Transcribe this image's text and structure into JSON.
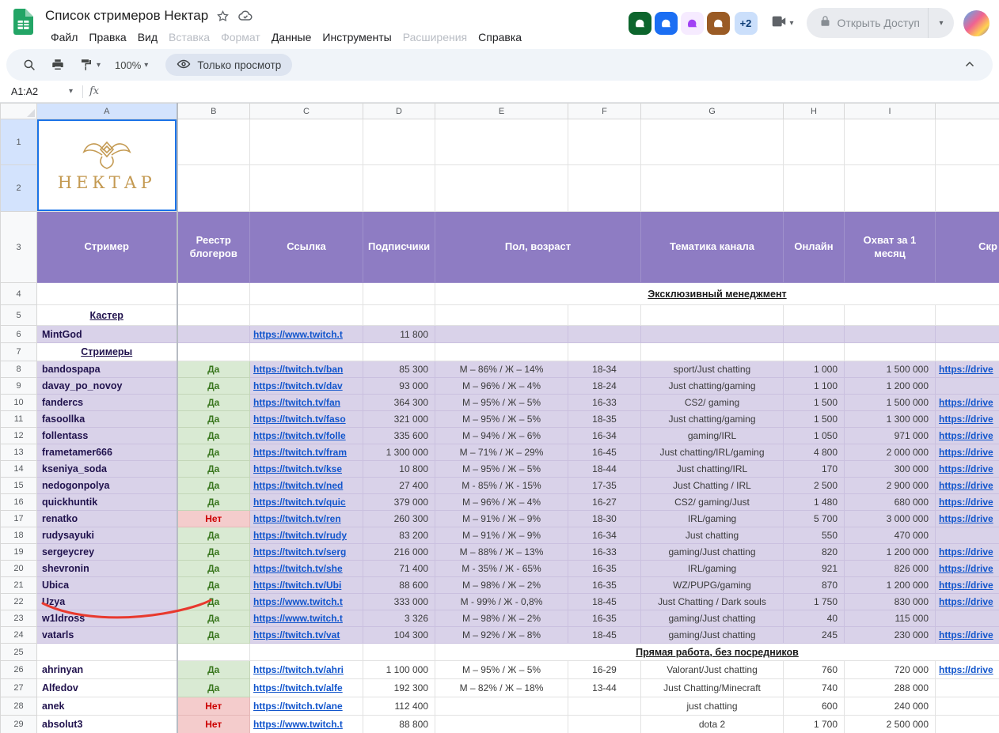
{
  "titlebar": {
    "doc_title": "Список стримеров Нектар",
    "menus": [
      {
        "label": "Файл",
        "disabled": false
      },
      {
        "label": "Правка",
        "disabled": false
      },
      {
        "label": "Вид",
        "disabled": false
      },
      {
        "label": "Вставка",
        "disabled": true
      },
      {
        "label": "Формат",
        "disabled": true
      },
      {
        "label": "Данные",
        "disabled": false
      },
      {
        "label": "Инструменты",
        "disabled": false
      },
      {
        "label": "Расширения",
        "disabled": true
      },
      {
        "label": "Справка",
        "disabled": false
      }
    ],
    "collaborators": [
      {
        "name": "collaborator-avatar-1",
        "bg": "#0d652d",
        "fg": "#ffffff"
      },
      {
        "name": "collaborator-avatar-2",
        "bg": "#1b6ef3",
        "fg": "#ffffff"
      },
      {
        "name": "collaborator-avatar-3",
        "bg": "#f6ebff",
        "fg": "#a142f4"
      },
      {
        "name": "collaborator-avatar-4",
        "bg": "#9a5b25",
        "fg": "#ffffff"
      }
    ],
    "overflow_badge": "+2",
    "share_label": "Открыть Доступ"
  },
  "toolbar": {
    "zoom_value": "100%",
    "view_mode_label": "Только просмотр"
  },
  "formula_bar": {
    "name_box": "A1:A2",
    "fx_label": "fx"
  },
  "colors": {
    "purple_header": "#8e7cc3",
    "purple_row": "#d9d2e9",
    "yes_bg": "#d9ead3",
    "yes_text": "#38761d",
    "no_bg": "#f4cccc",
    "no_text": "#cc0000",
    "link_blue": "#1155cc",
    "name_text": "#20124d",
    "logo_gold": "#c49a52",
    "annotation_red": "#e8392e",
    "selection_blue": "#1a73e8"
  },
  "grid": {
    "col_letters": [
      "A",
      "B",
      "C",
      "D",
      "E",
      "F",
      "G",
      "H",
      "I",
      ""
    ],
    "logo": {
      "text": "НЕКТАР",
      "row_numbers": [
        "1",
        "2"
      ]
    },
    "header_row_number": "3",
    "header_row": {
      "streamer": "Стример",
      "registry": "Реестр блогеров",
      "link": "Ссылка",
      "subscribers": "Подписчики",
      "gender_age": "Пол, возраст",
      "theme": "Тематика канала",
      "online": "Онлайн",
      "reach": "Охват за 1 месяц",
      "screenshot": "Скр"
    },
    "rows": [
      {
        "n": 4,
        "type": "section",
        "label": "Эксклюзивный менеджмент"
      },
      {
        "n": 5,
        "type": "label",
        "label": "Кастер"
      },
      {
        "n": 6,
        "type": "data",
        "shade": "purple",
        "name": "MintGod",
        "reg": "",
        "link": "https://www.twitch.t",
        "subs": "11 800",
        "gender": "",
        "age": "",
        "theme": "",
        "online": "",
        "reach": "",
        "shot": ""
      },
      {
        "n": 7,
        "type": "label",
        "label": "Стримеры"
      },
      {
        "n": 8,
        "type": "data",
        "shade": "purple",
        "name": "bandospapa",
        "reg": "Да",
        "link": "https://twitch.tv/ban",
        "subs": "85 300",
        "gender": "М – 86% / Ж – 14%",
        "age": "18-34",
        "theme": "sport/Just chatting",
        "online": "1 000",
        "reach": "1 500 000",
        "shot": "https://drive"
      },
      {
        "n": 9,
        "type": "data",
        "shade": "purple",
        "name": "davay_po_novoy",
        "reg": "Да",
        "link": "https://twitch.tv/dav",
        "subs": "93 000",
        "gender": "М – 96% / Ж – 4%",
        "age": "18-24",
        "theme": "Just chatting/gaming",
        "online": "1 100",
        "reach": "1 200 000",
        "shot": ""
      },
      {
        "n": 10,
        "type": "data",
        "shade": "purple",
        "name": "fandercs",
        "reg": "Да",
        "link": "https://twitch.tv/fan",
        "subs": "364 300",
        "gender": "М – 95% / Ж – 5%",
        "age": "16-33",
        "theme": "CS2/ gaming",
        "online": "1 500",
        "reach": "1 500 000",
        "shot": "https://drive"
      },
      {
        "n": 11,
        "type": "data",
        "shade": "purple",
        "name": "fasoollka",
        "reg": "Да",
        "link": "https://twitch.tv/faso",
        "subs": "321 000",
        "gender": "М – 95% / Ж – 5%",
        "age": "18-35",
        "theme": "Just chatting/gaming",
        "online": "1 500",
        "reach": "1 300 000",
        "shot": "https://drive"
      },
      {
        "n": 12,
        "type": "data",
        "shade": "purple",
        "name": "follentass",
        "reg": "Да",
        "link": "https://twitch.tv/folle",
        "subs": "335 600",
        "gender": "М – 94% / Ж – 6%",
        "age": "16-34",
        "theme": "gaming/IRL",
        "online": "1 050",
        "reach": "971 000",
        "shot": "https://drive"
      },
      {
        "n": 13,
        "type": "data",
        "shade": "purple",
        "name": "frametamer666",
        "reg": "Да",
        "link": "https://twitch.tv/fram",
        "subs": "1 300 000",
        "gender": "М – 71% / Ж – 29%",
        "age": "16-45",
        "theme": "Just chatting/IRL/gaming",
        "online": "4 800",
        "reach": "2 000 000",
        "shot": "https://drive"
      },
      {
        "n": 14,
        "type": "data",
        "shade": "purple",
        "name": "kseniya_soda",
        "reg": "Да",
        "link": "https://twitch.tv/kse",
        "subs": "10 800",
        "gender": "М – 95% / Ж – 5%",
        "age": "18-44",
        "theme": "Just chatting/IRL",
        "online": "170",
        "reach": "300 000",
        "shot": "https://drive"
      },
      {
        "n": 15,
        "type": "data",
        "shade": "purple",
        "name": "nedogonpolya",
        "reg": "Да",
        "link": "https://twitch.tv/ned",
        "subs": "27 400",
        "gender": "М - 85% / Ж - 15%",
        "age": "17-35",
        "theme": "Just Chatting / IRL",
        "online": "2 500",
        "reach": "2 900 000",
        "shot": "https://drive"
      },
      {
        "n": 16,
        "type": "data",
        "shade": "purple",
        "name": "quickhuntik",
        "reg": "Да",
        "link": "https://twitch.tv/quic",
        "subs": "379 000",
        "gender": "М – 96% / Ж – 4%",
        "age": "16-27",
        "theme": "CS2/ gaming/Just",
        "online": "1 480",
        "reach": "680 000",
        "shot": "https://drive"
      },
      {
        "n": 17,
        "type": "data",
        "shade": "purple",
        "name": "renatko",
        "reg": "Нет",
        "link": "https://twitch.tv/ren",
        "subs": "260 300",
        "gender": "М – 91% / Ж – 9%",
        "age": "18-30",
        "theme": "IRL/gaming",
        "online": "5 700",
        "reach": "3 000 000",
        "shot": "https://drive"
      },
      {
        "n": 18,
        "type": "data",
        "shade": "purple",
        "name": "rudysayuki",
        "reg": "Да",
        "link": "https://twitch.tv/rudy",
        "subs": "83 200",
        "gender": "М – 91% / Ж – 9%",
        "age": "16-34",
        "theme": "Just chatting",
        "online": "550",
        "reach": "470 000",
        "shot": ""
      },
      {
        "n": 19,
        "type": "data",
        "shade": "purple",
        "name": "sergeycrey",
        "reg": "Да",
        "link": "https://twitch.tv/serg",
        "subs": "216 000",
        "gender": "М – 88% / Ж – 13%",
        "age": "16-33",
        "theme": "gaming/Just chatting",
        "online": "820",
        "reach": "1 200 000",
        "shot": "https://drive"
      },
      {
        "n": 20,
        "type": "data",
        "shade": "purple",
        "name": "shevronin",
        "reg": "Да",
        "link": "https://twitch.tv/she",
        "subs": "71 400",
        "gender": "М - 35% / Ж - 65%",
        "age": "16-35",
        "theme": "IRL/gaming",
        "online": "921",
        "reach": "826 000",
        "shot": "https://drive"
      },
      {
        "n": 21,
        "type": "data",
        "shade": "purple",
        "name": "Ubica",
        "reg": "Да",
        "link": "https://twitch.tv/Ubi",
        "subs": "88 600",
        "gender": "М – 98% / Ж – 2%",
        "age": "16-35",
        "theme": "WZ/PUPG/gaming",
        "online": "870",
        "reach": "1 200 000",
        "shot": "https://drive"
      },
      {
        "n": 22,
        "type": "data",
        "shade": "purple",
        "name": "Uzya",
        "reg": "Да",
        "link": "https://www.twitch.t",
        "subs": "333 000",
        "gender": "М - 99% / Ж - 0,8%",
        "age": "18-45",
        "theme": "Just Chatting / Dark souls",
        "online": "1 750",
        "reach": "830 000",
        "shot": "https://drive"
      },
      {
        "n": 23,
        "type": "data",
        "shade": "purple",
        "name": "w1ldross",
        "reg": "Да",
        "link": "https://www.twitch.t",
        "subs": "3 326",
        "gender": "М – 98% / Ж – 2%",
        "age": "16-35",
        "theme": "gaming/Just chatting",
        "online": "40",
        "reach": "115 000",
        "shot": ""
      },
      {
        "n": 24,
        "type": "data",
        "shade": "purple",
        "name": "vatarls",
        "reg": "Да",
        "link": "https://twitch.tv/vat",
        "subs": "104 300",
        "gender": "М – 92% / Ж – 8%",
        "age": "18-45",
        "theme": "gaming/Just chatting",
        "online": "245",
        "reach": "230 000",
        "shot": "https://drive"
      },
      {
        "n": 25,
        "type": "section",
        "label": "Прямая работа, без посредников"
      },
      {
        "n": 26,
        "type": "data",
        "shade": "white",
        "name": "ahrinyan",
        "reg": "Да",
        "link": "https://twitch.tv/ahri",
        "subs": "1 100 000",
        "gender": "М – 95% / Ж – 5%",
        "age": "16-29",
        "theme": "Valorant/Just chatting",
        "online": "760",
        "reach": "720 000",
        "shot": "https://drive"
      },
      {
        "n": 27,
        "type": "data",
        "shade": "white",
        "name": "Alfedov",
        "reg": "Да",
        "link": "https://twitch.tv/alfe",
        "subs": "192 300",
        "gender": "М – 82% / Ж – 18%",
        "age": "13-44",
        "theme": "Just Chatting/Minecraft",
        "online": "740",
        "reach": "288 000",
        "shot": ""
      },
      {
        "n": 28,
        "type": "data",
        "shade": "white",
        "name": "anek",
        "reg": "Нет",
        "link": "https://twitch.tv/ane",
        "subs": "112 400",
        "gender": "",
        "age": "",
        "theme": "just chatting",
        "online": "600",
        "reach": "240 000",
        "shot": ""
      },
      {
        "n": 29,
        "type": "data",
        "shade": "white",
        "name": "absolut3",
        "reg": "Нет",
        "link": "https://www.twitch.t",
        "subs": "88 800",
        "gender": "",
        "age": "",
        "theme": "dota 2",
        "online": "1 700",
        "reach": "2 500 000",
        "shot": ""
      }
    ]
  }
}
